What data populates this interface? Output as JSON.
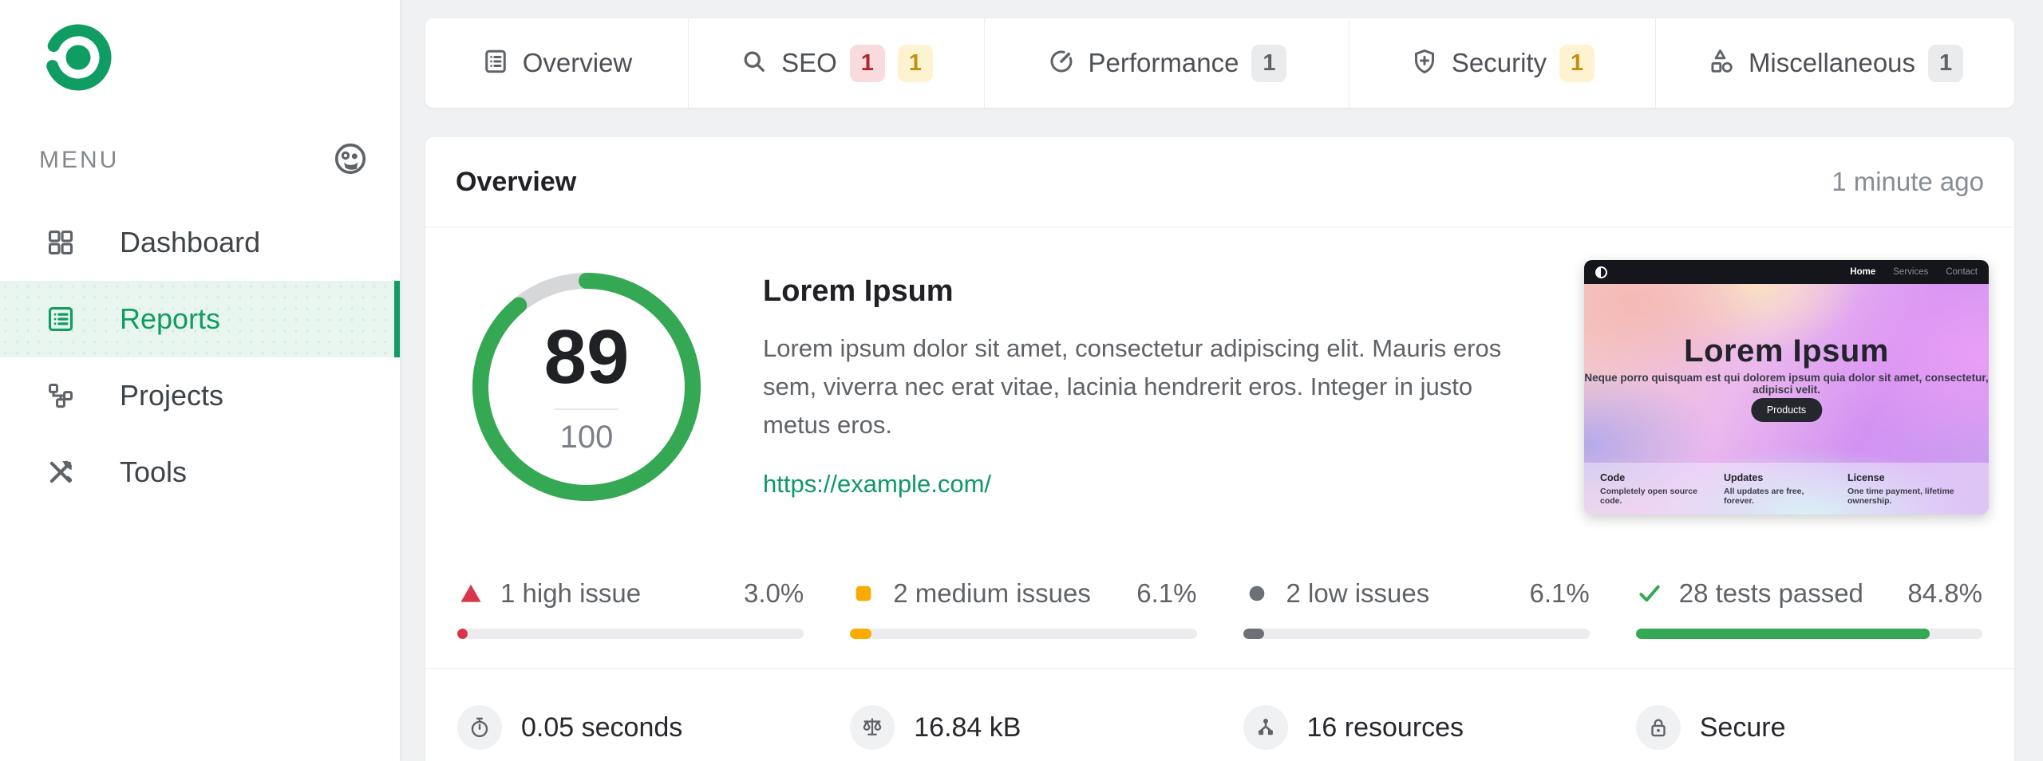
{
  "colors": {
    "brand_green": "#0f9d63",
    "success_green": "#34a853",
    "danger_red": "#d93649",
    "warning_amber": "#f9ab00",
    "neutral_gray": "#6d7175"
  },
  "sidebar": {
    "menu_label": "MENU",
    "items": [
      {
        "label": "Dashboard"
      },
      {
        "label": "Reports"
      },
      {
        "label": "Projects"
      },
      {
        "label": "Tools"
      }
    ]
  },
  "tabs": [
    {
      "label": "Overview",
      "badges": []
    },
    {
      "label": "SEO",
      "badges": [
        {
          "count": "1"
        },
        {
          "count": "1"
        }
      ]
    },
    {
      "label": "Performance",
      "badges": [
        {
          "count": "1"
        }
      ]
    },
    {
      "label": "Security",
      "badges": [
        {
          "count": "1"
        }
      ]
    },
    {
      "label": "Miscellaneous",
      "badges": [
        {
          "count": "1"
        }
      ]
    }
  ],
  "card": {
    "title": "Overview",
    "timestamp": "1 minute ago",
    "score": {
      "value": "89",
      "total": "100",
      "percent": 89
    },
    "site": {
      "title": "Lorem Ipsum",
      "description": "Lorem ipsum dolor sit amet, consectetur adipiscing elit. Mauris eros sem, viverra nec erat vitae, lacinia hendrerit eros. Integer in justo metus eros.",
      "url": "https://example.com/"
    },
    "stats": [
      {
        "label": "1 high issue",
        "percent": "3.0%",
        "fill": 3
      },
      {
        "label": "2 medium issues",
        "percent": "6.1%",
        "fill": 6.1
      },
      {
        "label": "2 low issues",
        "percent": "6.1%",
        "fill": 6.1
      },
      {
        "label": "28 tests passed",
        "percent": "84.8%",
        "fill": 84.8
      }
    ],
    "metrics": [
      {
        "value": "0.05 seconds"
      },
      {
        "value": "16.84 kB"
      },
      {
        "value": "16 resources"
      },
      {
        "value": "Secure"
      }
    ]
  },
  "thumbnail": {
    "nav_links": [
      {
        "label": "Home"
      },
      {
        "label": "Services"
      },
      {
        "label": "Contact"
      }
    ],
    "hero": {
      "title": "Lorem Ipsum",
      "subtitle": "Neque porro quisquam est qui dolorem ipsum quia dolor sit amet, consectetur, adipisci velit.",
      "button": "Products"
    },
    "footer_columns": [
      {
        "heading": "Code",
        "text": "Completely open source code."
      },
      {
        "heading": "Updates",
        "text": "All updates are free, forever."
      },
      {
        "heading": "License",
        "text": "One time payment, lifetime ownership."
      }
    ]
  }
}
